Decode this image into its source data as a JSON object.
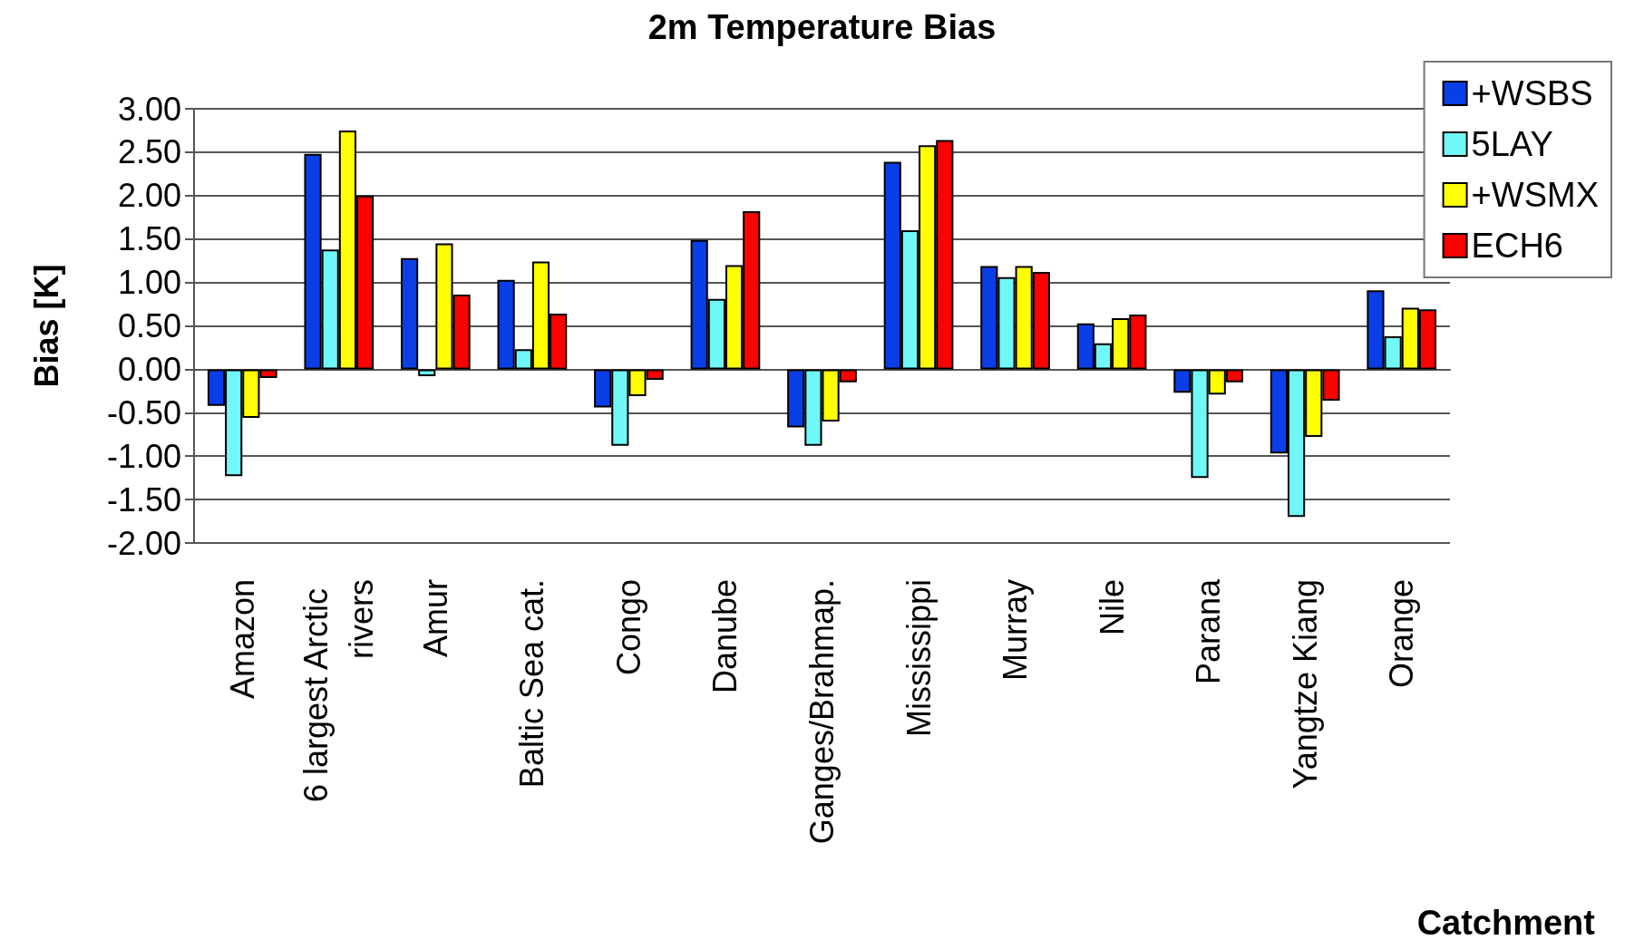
{
  "chart_data": {
    "type": "bar",
    "title": "2m Temperature Bias",
    "xlabel": "Catchment",
    "ylabel": "Bias [K]",
    "categories": [
      "Amazon",
      "6 largest Arctic rivers",
      "Amur",
      "Baltic Sea cat.",
      "Congo",
      "Danube",
      "Ganges/Brahmap.",
      "Mississippi",
      "Murray",
      "Nile",
      "Parana",
      "Yangtze Kiang",
      "Orange"
    ],
    "series": [
      {
        "name": "+WSBS",
        "color": "#0a3ee6",
        "values": [
          -0.42,
          2.48,
          1.28,
          1.03,
          -0.44,
          1.49,
          -0.67,
          2.39,
          1.19,
          0.53,
          -0.27,
          -0.97,
          0.91
        ]
      },
      {
        "name": "5LAY",
        "color": "#70f8f8",
        "values": [
          -1.23,
          1.38,
          -0.08,
          0.23,
          -0.88,
          0.81,
          -0.88,
          1.6,
          1.06,
          0.3,
          -1.25,
          -1.7,
          0.38
        ]
      },
      {
        "name": "+WSMX",
        "color": "#ffff00",
        "values": [
          -0.56,
          2.75,
          1.45,
          1.24,
          -0.31,
          1.2,
          -0.6,
          2.58,
          1.19,
          0.59,
          -0.29,
          -0.78,
          0.71
        ]
      },
      {
        "name": "ECH6",
        "color": "#ff0000",
        "values": [
          -0.1,
          2.0,
          0.86,
          0.64,
          -0.12,
          1.82,
          -0.15,
          2.64,
          1.12,
          0.63,
          -0.15,
          -0.36,
          0.69
        ]
      }
    ],
    "ylim": [
      -2,
      3
    ],
    "yticks": [
      {
        "value": -2,
        "label": "-2.00"
      },
      {
        "value": -1.5,
        "label": "-1.50"
      },
      {
        "value": -1,
        "label": "-1.00"
      },
      {
        "value": -0.5,
        "label": "-0.50"
      },
      {
        "value": 0,
        "label": "0.00"
      },
      {
        "value": 0.5,
        "label": "0.50"
      },
      {
        "value": 1,
        "label": "1.00"
      },
      {
        "value": 1.5,
        "label": "1.50"
      },
      {
        "value": 2,
        "label": "2.00"
      },
      {
        "value": 2.5,
        "label": "2.50"
      },
      {
        "value": 3,
        "label": "3.00"
      }
    ],
    "grid": "y",
    "legend": "top right"
  }
}
